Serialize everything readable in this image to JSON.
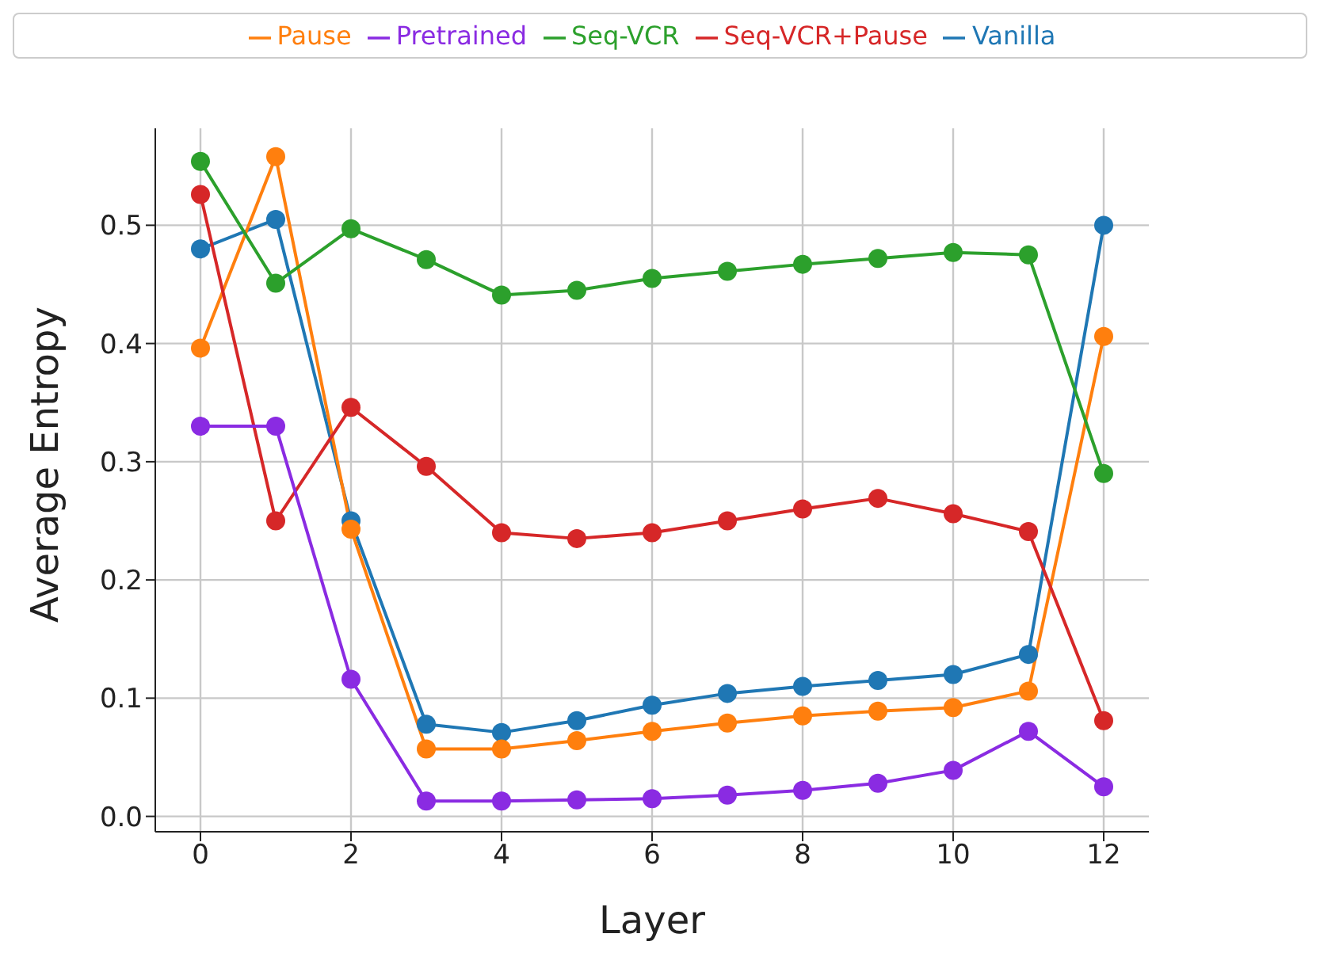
{
  "chart_data": {
    "type": "line",
    "xlabel": "Layer",
    "ylabel": "Average Entropy",
    "x": [
      0,
      1,
      2,
      3,
      4,
      5,
      6,
      7,
      8,
      9,
      10,
      11,
      12
    ],
    "series": [
      {
        "name": "Vanilla",
        "color": "#1f77b4",
        "values": [
          0.48,
          0.505,
          0.25,
          0.078,
          0.071,
          0.081,
          0.094,
          0.104,
          0.11,
          0.115,
          0.12,
          0.137,
          0.5
        ]
      },
      {
        "name": "Pause",
        "color": "#ff7f0e",
        "values": [
          0.396,
          0.558,
          0.243,
          0.057,
          0.057,
          0.064,
          0.072,
          0.079,
          0.085,
          0.089,
          0.092,
          0.106,
          0.406
        ]
      },
      {
        "name": "Seq-VCR",
        "color": "#2ca02c",
        "values": [
          0.554,
          0.451,
          0.497,
          0.471,
          0.441,
          0.445,
          0.455,
          0.461,
          0.467,
          0.472,
          0.477,
          0.475,
          0.29
        ]
      },
      {
        "name": "Seq-VCR+Pause",
        "color": "#d62728",
        "values": [
          0.526,
          0.25,
          0.346,
          0.296,
          0.24,
          0.235,
          0.24,
          0.25,
          0.26,
          0.269,
          0.256,
          0.241,
          0.081
        ]
      },
      {
        "name": "Pretrained",
        "color": "#8a2be2",
        "values": [
          0.33,
          0.33,
          0.116,
          0.013,
          0.013,
          0.014,
          0.015,
          0.018,
          0.022,
          0.028,
          0.039,
          0.072,
          0.025
        ]
      }
    ],
    "xlim": [
      -0.6,
      12.6
    ],
    "xticks": [
      0,
      2,
      4,
      6,
      8,
      10,
      12
    ],
    "ylim": [
      -0.013,
      0.582
    ],
    "yticks": [
      {
        "value": 0,
        "label": "0.0"
      },
      0.1,
      0.2,
      0.3,
      0.4,
      0.5
    ],
    "grid": true,
    "legend": "top",
    "marker": "circle",
    "line_style": "solid"
  }
}
